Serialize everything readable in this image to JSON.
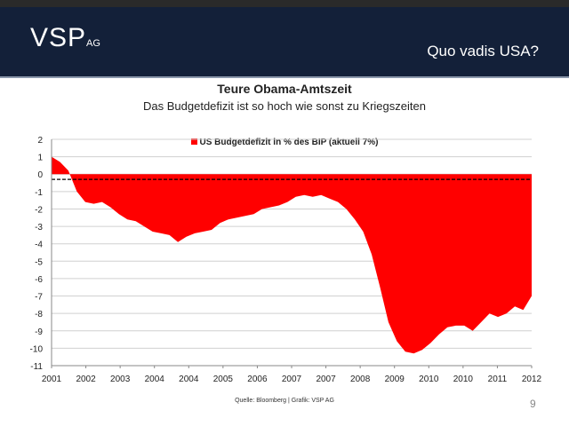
{
  "header": {
    "logo": "VSP",
    "logo_sub": "AG",
    "title": "Quo vadis USA?"
  },
  "footer": {
    "source": "Quelle: Bloomberg | Grafik: VSP AG",
    "page": "9"
  },
  "chart_data": {
    "type": "area",
    "title": "Teure Obama-Amtszeit",
    "subtitle": "Das Budgetdefizit ist so hoch wie sonst zu Kriegszeiten",
    "legend": [
      {
        "name": "US Budgetdefizit in % des BIP (aktuell 7%)",
        "color": "#ff0000"
      }
    ],
    "legend_position": "top-center",
    "ylim": [
      -11,
      2
    ],
    "yticks": [
      2,
      1,
      0,
      -1,
      -2,
      -3,
      -4,
      -5,
      -6,
      -7,
      -8,
      -9,
      -10,
      -11
    ],
    "xtick_labels": [
      "2001",
      "2002",
      "2003",
      "2004",
      "2004",
      "2005",
      "2006",
      "2007",
      "2007",
      "2008",
      "2009",
      "2010",
      "2010",
      "2011",
      "2012"
    ],
    "reference_line": -0.3,
    "grid": true,
    "series": [
      {
        "name": "US Budgetdefizit in % des BIP (aktuell 7%)",
        "color": "#ff0000",
        "values": [
          1.0,
          0.7,
          0.2,
          -1.0,
          -1.6,
          -1.7,
          -1.6,
          -1.9,
          -2.3,
          -2.6,
          -2.7,
          -3.0,
          -3.3,
          -3.4,
          -3.5,
          -3.9,
          -3.6,
          -3.4,
          -3.3,
          -3.2,
          -2.8,
          -2.6,
          -2.5,
          -2.4,
          -2.3,
          -2.0,
          -1.9,
          -1.8,
          -1.6,
          -1.3,
          -1.2,
          -1.3,
          -1.2,
          -1.4,
          -1.6,
          -2.0,
          -2.6,
          -3.3,
          -4.6,
          -6.5,
          -8.5,
          -9.6,
          -10.2,
          -10.3,
          -10.1,
          -9.7,
          -9.2,
          -8.8,
          -8.7,
          -8.7,
          -9.0,
          -8.5,
          -8.0,
          -8.2,
          -8.0,
          -7.6,
          -7.8,
          -7.0
        ]
      }
    ]
  }
}
